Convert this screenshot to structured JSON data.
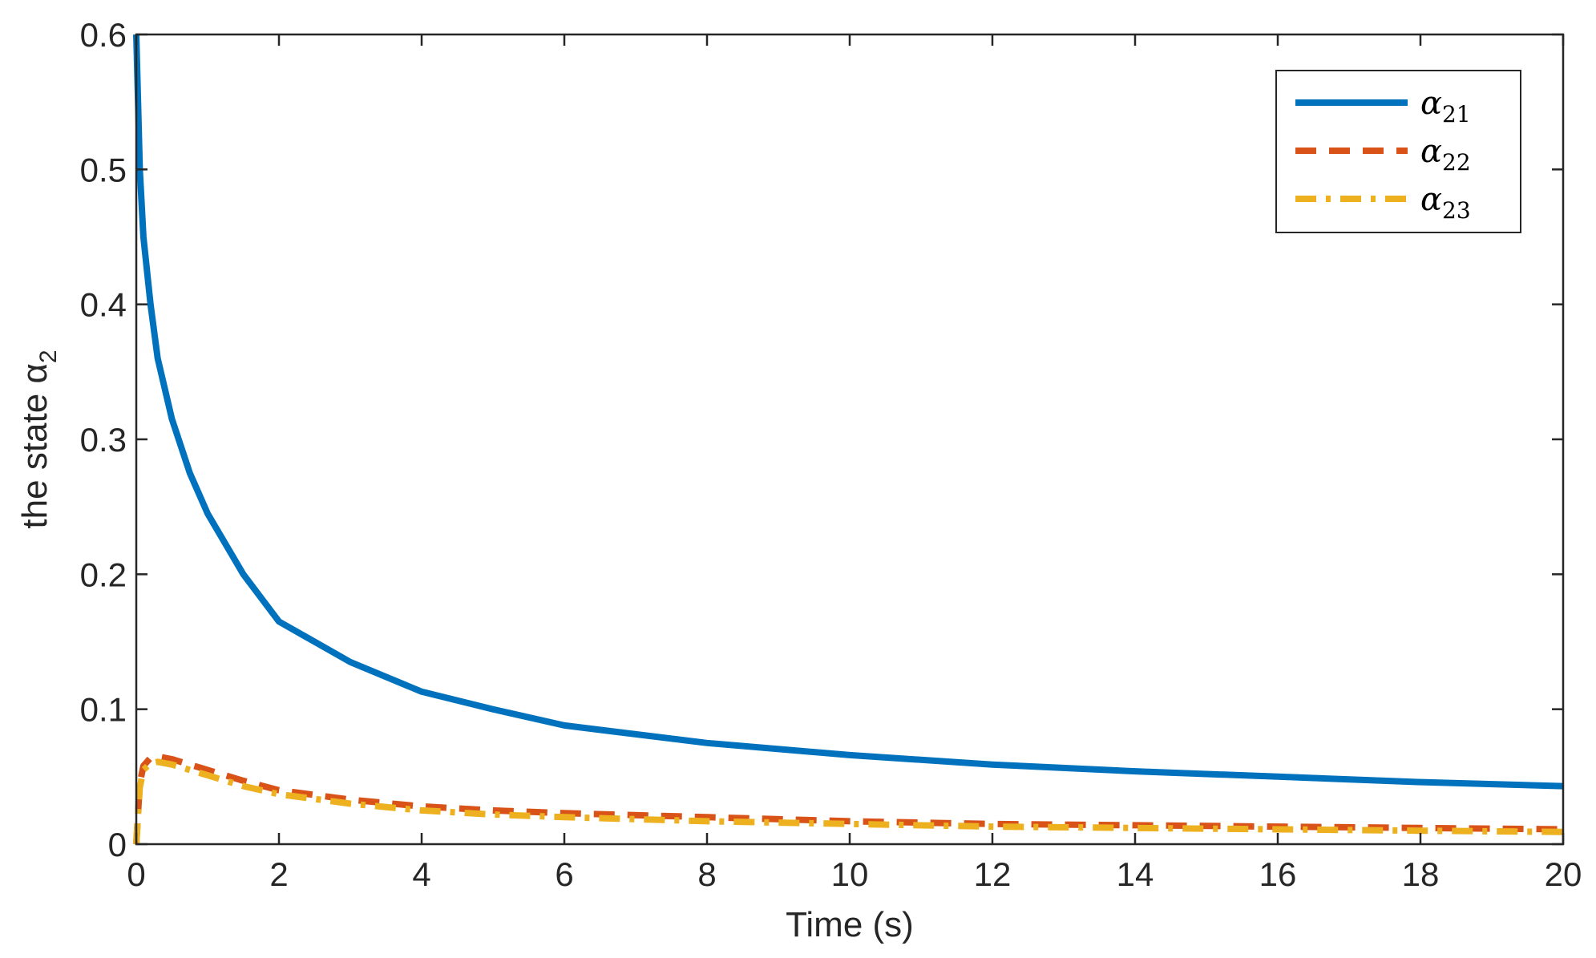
{
  "chart_data": {
    "type": "line",
    "xlabel": "Time (s)",
    "ylabel": "the state α",
    "ylabel_sub": "2",
    "xlim": [
      0,
      20
    ],
    "ylim": [
      0,
      0.6
    ],
    "xticks": [
      "0",
      "2",
      "4",
      "6",
      "8",
      "10",
      "12",
      "14",
      "16",
      "18",
      "20"
    ],
    "yticks": [
      "0",
      "0.1",
      "0.2",
      "0.3",
      "0.4",
      "0.5",
      "0.6"
    ],
    "grid": false,
    "legend_position": "top-right",
    "series": [
      {
        "name": "α",
        "name_sub": "21",
        "color": "#0072BD",
        "style": "solid",
        "x": [
          0,
          0.05,
          0.1,
          0.2,
          0.3,
          0.5,
          0.75,
          1,
          1.5,
          2,
          3,
          4,
          5,
          6,
          8,
          10,
          12,
          14,
          16,
          18,
          20
        ],
        "y": [
          0.6,
          0.5,
          0.45,
          0.4,
          0.36,
          0.315,
          0.275,
          0.245,
          0.2,
          0.165,
          0.135,
          0.113,
          0.1,
          0.088,
          0.075,
          0.066,
          0.059,
          0.054,
          0.05,
          0.046,
          0.043
        ]
      },
      {
        "name": "α",
        "name_sub": "22",
        "color": "#D95319",
        "style": "dashed",
        "x": [
          0,
          0.05,
          0.1,
          0.2,
          0.3,
          0.5,
          0.75,
          1,
          1.5,
          2,
          3,
          4,
          5,
          6,
          8,
          10,
          12,
          14,
          16,
          18,
          20
        ],
        "y": [
          0,
          0.045,
          0.058,
          0.064,
          0.065,
          0.063,
          0.059,
          0.055,
          0.047,
          0.04,
          0.033,
          0.028,
          0.025,
          0.023,
          0.02,
          0.017,
          0.015,
          0.014,
          0.013,
          0.012,
          0.011
        ]
      },
      {
        "name": "α",
        "name_sub": "23",
        "color": "#EDB120",
        "style": "dashdot",
        "x": [
          0,
          0.05,
          0.1,
          0.2,
          0.3,
          0.5,
          0.75,
          1,
          1.5,
          2,
          3,
          4,
          5,
          6,
          8,
          10,
          12,
          14,
          16,
          18,
          20
        ],
        "y": [
          0,
          0.042,
          0.055,
          0.06,
          0.061,
          0.059,
          0.055,
          0.051,
          0.043,
          0.037,
          0.03,
          0.025,
          0.022,
          0.02,
          0.017,
          0.015,
          0.013,
          0.012,
          0.011,
          0.01,
          0.009
        ]
      }
    ]
  }
}
